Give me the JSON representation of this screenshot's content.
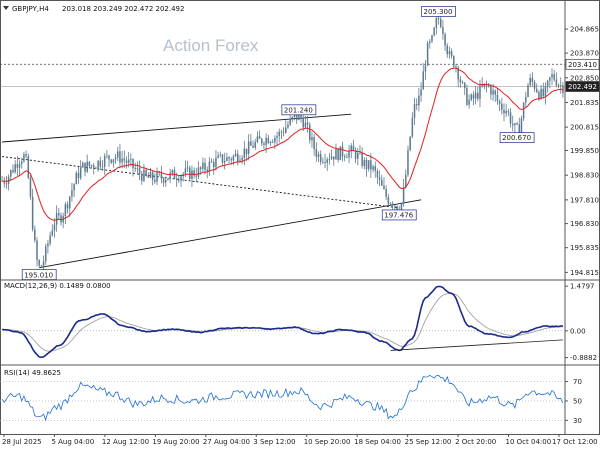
{
  "header": {
    "symbol": "GBPJPY,H4",
    "ohlc": "203.018 203.249 202.472 202.492"
  },
  "watermark": "Action Forex",
  "chart_data": [
    {
      "type": "candlestick",
      "name": "price",
      "ylim": [
        194.5,
        205.9
      ],
      "y_ticks": [
        {
          "v": 204.865,
          "label": "204.865"
        },
        {
          "v": 203.87,
          "label": "203.870"
        },
        {
          "v": 202.85,
          "label": "202.850"
        },
        {
          "v": 201.835,
          "label": "201.835"
        },
        {
          "v": 200.815,
          "label": "200.815"
        },
        {
          "v": 199.85,
          "label": "199.850"
        },
        {
          "v": 198.83,
          "label": "198.830"
        },
        {
          "v": 197.81,
          "label": "197.810"
        },
        {
          "v": 196.83,
          "label": "196.830"
        },
        {
          "v": 195.835,
          "label": "195.835"
        },
        {
          "v": 194.815,
          "label": "194.815"
        }
      ],
      "x_ticks": [
        "28 Jul 2025",
        "5 Aug 04:00",
        "12 Aug 12:00",
        "19 Aug 20:00",
        "27 Aug 04:00",
        "3 Sep 12:00",
        "10 Sep 20:00",
        "18 Sep 04:00",
        "25 Sep 12:00",
        "2 Oct 20:00",
        "10 Oct 04:00",
        "17 Oct 12:00"
      ],
      "anchors": [
        [
          0,
          198.6
        ],
        [
          10,
          199.6
        ],
        [
          17,
          195.01
        ],
        [
          25,
          197.0
        ],
        [
          38,
          199.2
        ],
        [
          52,
          199.6
        ],
        [
          68,
          198.7
        ],
        [
          86,
          198.9
        ],
        [
          102,
          199.5
        ],
        [
          124,
          200.4
        ],
        [
          136,
          201.24
        ],
        [
          146,
          199.6
        ],
        [
          160,
          199.8
        ],
        [
          168,
          199.2
        ],
        [
          178,
          197.8
        ],
        [
          182,
          197.476
        ],
        [
          190,
          201.8
        ],
        [
          196,
          204.2
        ],
        [
          200,
          205.3
        ],
        [
          206,
          203.6
        ],
        [
          214,
          201.9
        ],
        [
          222,
          202.5
        ],
        [
          230,
          201.6
        ],
        [
          236,
          200.67
        ],
        [
          242,
          202.7
        ],
        [
          248,
          202.1
        ],
        [
          252,
          202.9
        ],
        [
          257,
          202.49
        ]
      ],
      "annotations": [
        {
          "label": "195.010",
          "bar": 17,
          "v": 195.01,
          "pos": "below"
        },
        {
          "label": "201.240",
          "bar": 136,
          "v": 201.24,
          "pos": "above"
        },
        {
          "label": "197.476",
          "bar": 182,
          "v": 197.476,
          "pos": "below"
        },
        {
          "label": "205.300",
          "bar": 200,
          "v": 205.3,
          "pos": "above"
        },
        {
          "label": "200.670",
          "bar": 236,
          "v": 200.67,
          "pos": "below"
        }
      ],
      "moving_average_color": "#e02020",
      "candle_color": "#5d7a8f",
      "lines": [
        {
          "from": [
            0,
            200.2
          ],
          "to": [
            160,
            201.35
          ],
          "style": "solid"
        },
        {
          "from": [
            17,
            195.01
          ],
          "to": [
            192,
            197.81
          ],
          "style": "solid"
        },
        {
          "from": [
            0,
            199.6
          ],
          "to": [
            182,
            197.476
          ],
          "style": "dashed"
        }
      ],
      "current_price": {
        "label": "202.492",
        "v": 202.492
      },
      "level_line": {
        "label": "203.410",
        "v": 203.41
      }
    },
    {
      "type": "line",
      "name": "MACD",
      "label": "MACD(12,26,9) 0.1489 0.0800",
      "ylim": [
        -1.0,
        1.55
      ],
      "y_ticks": [
        {
          "v": 1.4797,
          "label": "1.4797"
        },
        {
          "v": 0.0,
          "label": "0.00"
        },
        {
          "v": -0.8882,
          "label": "-0.8882"
        }
      ],
      "color": "#1a2a8c",
      "signal_color": "#999999",
      "anchors": [
        [
          0,
          0.05
        ],
        [
          8,
          -0.05
        ],
        [
          18,
          -0.88
        ],
        [
          26,
          -0.5
        ],
        [
          36,
          0.35
        ],
        [
          46,
          0.55
        ],
        [
          56,
          0.15
        ],
        [
          66,
          -0.02
        ],
        [
          78,
          0.05
        ],
        [
          90,
          -0.05
        ],
        [
          102,
          0.08
        ],
        [
          114,
          0.1
        ],
        [
          124,
          0.06
        ],
        [
          134,
          0.12
        ],
        [
          144,
          -0.1
        ],
        [
          156,
          0.04
        ],
        [
          166,
          -0.05
        ],
        [
          174,
          -0.35
        ],
        [
          182,
          -0.65
        ],
        [
          188,
          -0.25
        ],
        [
          194,
          1.1
        ],
        [
          200,
          1.48
        ],
        [
          206,
          1.25
        ],
        [
          214,
          0.15
        ],
        [
          222,
          -0.1
        ],
        [
          232,
          -0.22
        ],
        [
          240,
          -0.02
        ],
        [
          248,
          0.15
        ],
        [
          257,
          0.1489
        ]
      ],
      "support_line": {
        "from": [
          178,
          -0.65
        ],
        "to": [
          257,
          -0.3
        ]
      }
    },
    {
      "type": "line",
      "name": "RSI",
      "label": "RSI(14) 49.8625",
      "ylim": [
        18,
        85
      ],
      "y_ticks": [
        {
          "v": 70,
          "label": "70"
        },
        {
          "v": 50,
          "label": "50"
        },
        {
          "v": 30,
          "label": "30"
        }
      ],
      "color": "#1e6fd0",
      "anchors": [
        [
          0,
          52
        ],
        [
          8,
          55
        ],
        [
          18,
          32
        ],
        [
          26,
          45
        ],
        [
          36,
          65
        ],
        [
          50,
          58
        ],
        [
          62,
          47
        ],
        [
          74,
          53
        ],
        [
          86,
          50
        ],
        [
          100,
          55
        ],
        [
          114,
          57
        ],
        [
          126,
          58
        ],
        [
          136,
          60
        ],
        [
          146,
          45
        ],
        [
          160,
          54
        ],
        [
          170,
          45
        ],
        [
          180,
          34
        ],
        [
          188,
          62
        ],
        [
          196,
          78
        ],
        [
          204,
          72
        ],
        [
          214,
          48
        ],
        [
          224,
          54
        ],
        [
          234,
          45
        ],
        [
          242,
          60
        ],
        [
          250,
          58
        ],
        [
          257,
          49.8625
        ]
      ]
    }
  ]
}
